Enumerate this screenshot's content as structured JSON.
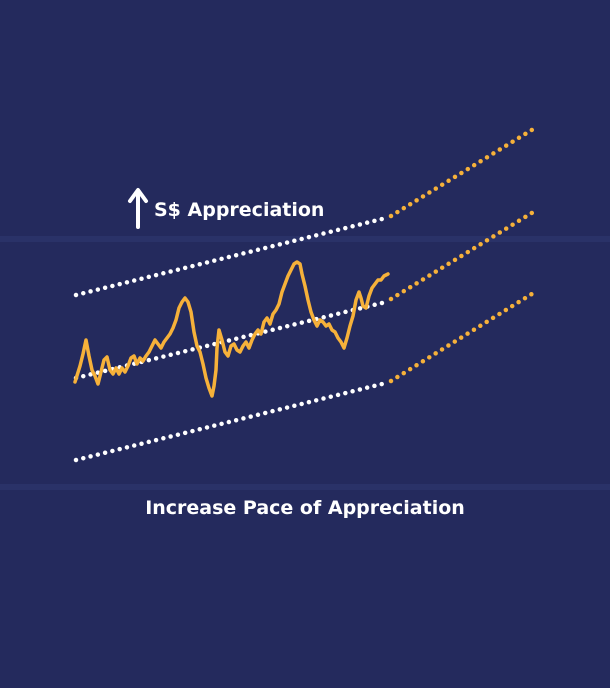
{
  "labels": {
    "top": "S$ Appreciation",
    "bottom": "Increase Pace of Appreciation"
  },
  "icons": {
    "arrow": "up-arrow-icon"
  },
  "colors": {
    "background": "#242a5d",
    "band": "#2a3268",
    "band_dots": "#ffffff",
    "projection_dots": "#f6b13a",
    "exchange_rate_line": "#f6b13a",
    "text": "#ffffff"
  }
}
